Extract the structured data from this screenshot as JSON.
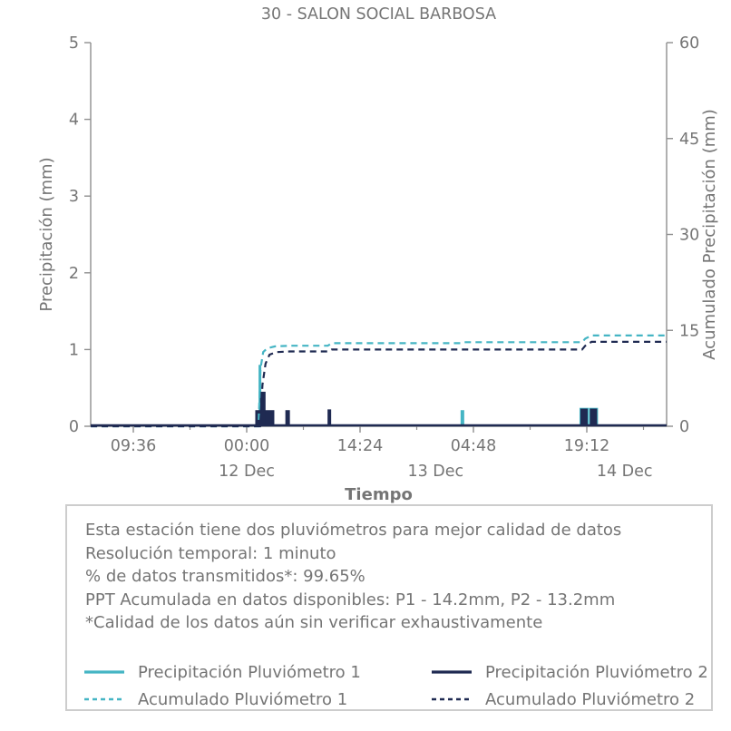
{
  "title": "30 - SALON SOCIAL BARBOSA",
  "colors": {
    "teal": "#45b5c4",
    "navy": "#1f2a52",
    "text": "#757575",
    "axis": "#8f8f8f",
    "box_border": "#cdcdcd"
  },
  "chart_data": {
    "type": "bar",
    "title": "30 - SALON SOCIAL BARBOSA",
    "xlabel": "Tiempo",
    "ylabel_left": "Precipitación (mm)",
    "ylabel_right": "Acumulado Precipitación (mm)",
    "ylim_left": [
      0,
      5
    ],
    "ylim_right": [
      0,
      60
    ],
    "yticks_left": [
      0,
      1,
      2,
      3,
      4,
      5
    ],
    "yticks_right": [
      0,
      15,
      30,
      45,
      60
    ],
    "x_domain_hours": [
      -19.8,
      53.3
    ],
    "x_hours_note": "hours relative to 12 Dec 00:00",
    "xticks": [
      {
        "label": "09:36",
        "t": -14.4
      },
      {
        "label": "00:00",
        "t": 0
      },
      {
        "label": "14:24",
        "t": 14.4
      },
      {
        "label": "04:48",
        "t": 28.8
      },
      {
        "label": "19:12",
        "t": 43.2
      }
    ],
    "xticks_minor": [
      -7.2,
      7.2,
      21.6,
      36.0,
      50.4
    ],
    "xdates": [
      {
        "label": "12 Dec",
        "t": 0
      },
      {
        "label": "13 Dec",
        "t": 24
      },
      {
        "label": "14 Dec",
        "t": 48
      }
    ],
    "series": [
      {
        "name": "Precipitación Pluviómetro 1",
        "kind": "bars",
        "axis": "left",
        "color": "teal",
        "points": [
          {
            "t": 1.68,
            "v": 0.8,
            "w": 3
          },
          {
            "t": 27.4,
            "v": 0.21,
            "w": 4
          },
          {
            "t": 42.85,
            "v": 0.24,
            "w": 10
          },
          {
            "t": 44.05,
            "v": 0.24,
            "w": 10
          }
        ]
      },
      {
        "name": "Precipitación Pluviómetro 2",
        "kind": "bars",
        "axis": "left",
        "color": "navy",
        "points": [
          {
            "t": 2.3,
            "v": 0.21,
            "w": 21
          },
          {
            "t": 2.05,
            "v": 0.45,
            "w": 6
          },
          {
            "t": 5.2,
            "v": 0.21,
            "w": 5
          },
          {
            "t": 10.5,
            "v": 0.22,
            "w": 4
          },
          {
            "t": 42.85,
            "v": 0.23,
            "w": 8
          },
          {
            "t": 44.05,
            "v": 0.23,
            "w": 8
          }
        ]
      },
      {
        "name": "Acumulado Pluviómetro 1",
        "kind": "dashed-line",
        "axis": "right",
        "color": "teal",
        "final_mm": 14.2,
        "points": [
          [
            -19.8,
            0
          ],
          [
            1.5,
            0
          ],
          [
            1.75,
            9.0
          ],
          [
            2.1,
            11.6
          ],
          [
            2.6,
            12.2
          ],
          [
            3.6,
            12.5
          ],
          [
            5.5,
            12.6
          ],
          [
            10.3,
            12.6
          ],
          [
            10.8,
            13.0
          ],
          [
            27.2,
            13.0
          ],
          [
            27.6,
            13.15
          ],
          [
            42.6,
            13.15
          ],
          [
            43.0,
            13.7
          ],
          [
            43.8,
            14.2
          ],
          [
            53.3,
            14.2
          ]
        ]
      },
      {
        "name": "Acumulado Pluviómetro 2",
        "kind": "dashed-line",
        "axis": "right",
        "color": "navy",
        "final_mm": 13.2,
        "points": [
          [
            -19.8,
            0
          ],
          [
            1.7,
            0
          ],
          [
            2.0,
            6.5
          ],
          [
            2.4,
            9.8
          ],
          [
            2.9,
            11.2
          ],
          [
            3.8,
            11.6
          ],
          [
            5.5,
            11.7
          ],
          [
            10.3,
            11.7
          ],
          [
            10.8,
            12.0
          ],
          [
            42.6,
            12.0
          ],
          [
            43.0,
            12.6
          ],
          [
            43.8,
            13.2
          ],
          [
            53.3,
            13.2
          ]
        ]
      }
    ]
  },
  "info_box": {
    "lines": [
      "Esta estación tiene dos pluviómetros para mejor calidad de datos",
      "Resolución temporal: 1 minuto",
      "% de datos transmitidos*: 99.65%",
      "PPT Acumulada en datos disponibles: P1 - 14.2mm, P2 - 13.2mm",
      "*Calidad de los datos aún sin verificar exhaustivamente"
    ]
  },
  "legend": [
    {
      "label": "Precipitación Pluviómetro 1",
      "color": "teal",
      "dashed": false
    },
    {
      "label": "Precipitación Pluviómetro 2",
      "color": "navy",
      "dashed": false
    },
    {
      "label": "Acumulado Pluviómetro 1",
      "color": "teal",
      "dashed": true
    },
    {
      "label": "Acumulado Pluviómetro 2",
      "color": "navy",
      "dashed": true
    }
  ]
}
